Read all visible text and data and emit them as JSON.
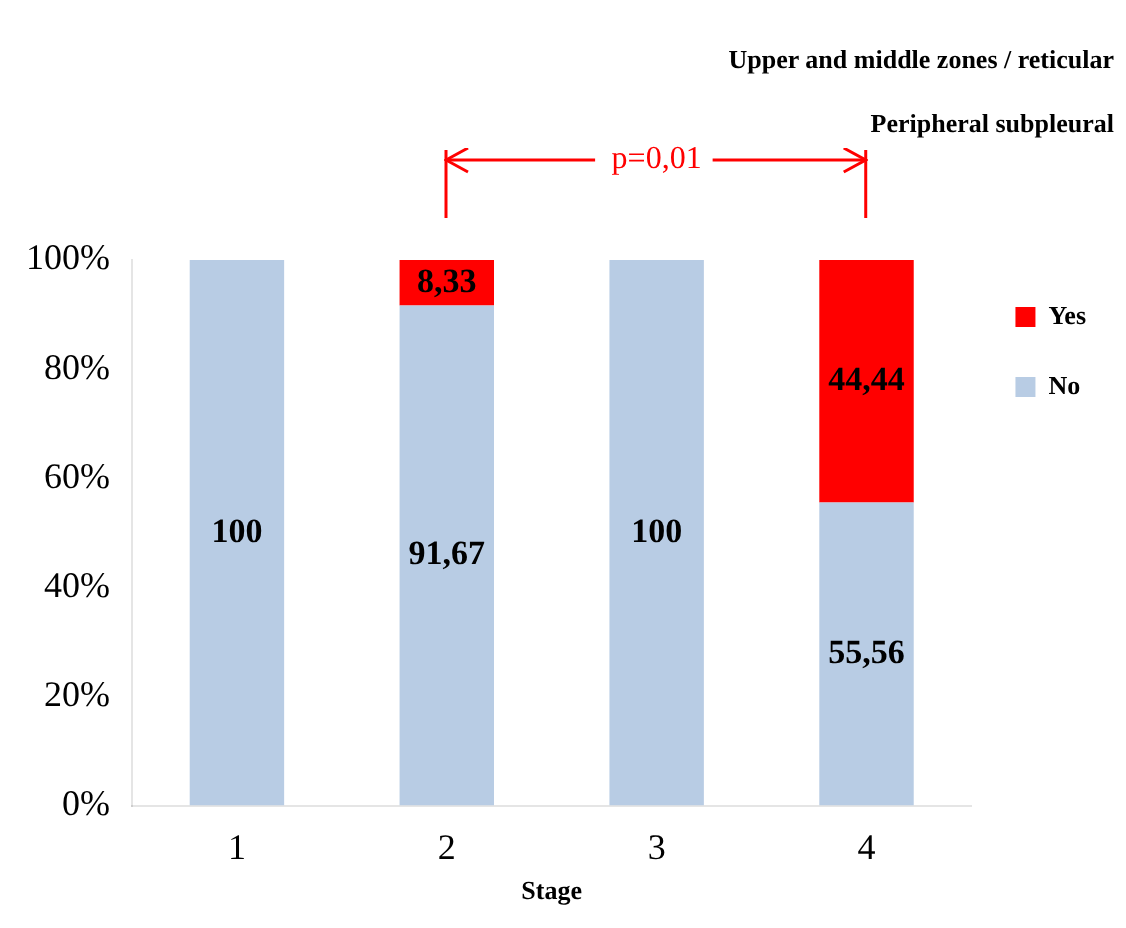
{
  "chart_data": {
    "type": "bar",
    "title": "Upper and middle zones  / reticular",
    "subtitle": "Peripheral subpleural",
    "xlabel": "Stage",
    "categories": [
      "1",
      "2",
      "3",
      "4"
    ],
    "stacked": true,
    "series": [
      {
        "name": "No",
        "color": "#b8cce4",
        "values": [
          100,
          91.67,
          100,
          55.56
        ],
        "value_labels": [
          "100",
          "91,67",
          "100",
          "55,56"
        ]
      },
      {
        "name": "Yes",
        "color": "#ff0000",
        "values": [
          null,
          8.33,
          null,
          44.44
        ],
        "value_labels": [
          null,
          "8,33",
          null,
          "44,44"
        ]
      }
    ],
    "ylim": [
      0,
      100
    ],
    "yticks": [
      {
        "value": 0,
        "label": "0%"
      },
      {
        "value": 20,
        "label": "20%"
      },
      {
        "value": 40,
        "label": "40%"
      },
      {
        "value": 60,
        "label": "60%"
      },
      {
        "value": 80,
        "label": "80%"
      },
      {
        "value": 100,
        "label": "100%"
      }
    ],
    "grid": false,
    "legend": "right",
    "annotations": [
      "p=0,01"
    ]
  }
}
